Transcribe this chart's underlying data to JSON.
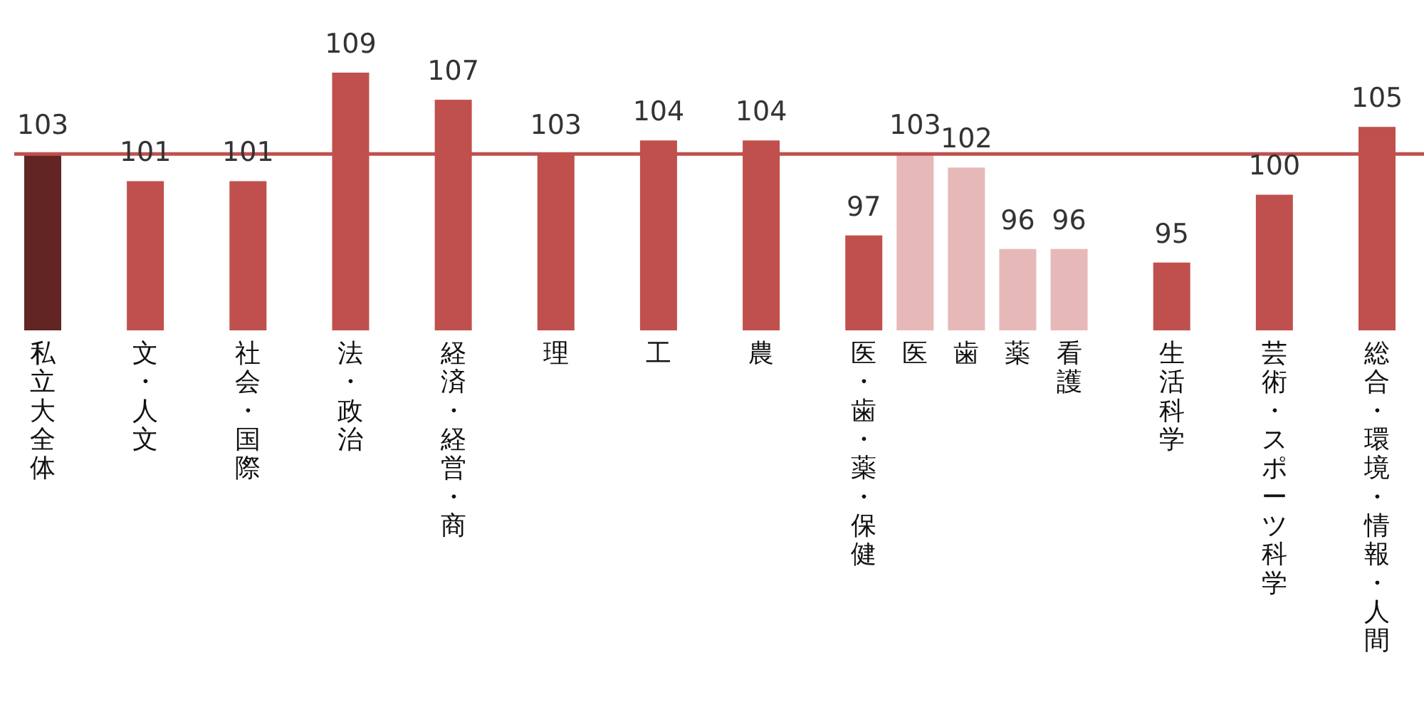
{
  "chart_data": {
    "type": "bar",
    "categories": [
      "私立大全体",
      null,
      "文・人文",
      null,
      "社会・国際",
      null,
      "法・政治",
      null,
      "経済・経営・商",
      null,
      "理",
      null,
      "工",
      null,
      "農",
      null,
      "医・歯・薬・保健",
      "医",
      "歯",
      "薬",
      "看護",
      null,
      "生活科学",
      null,
      "芸術・スポーツ科学",
      null,
      "総合・環境・情報・人間"
    ],
    "values": [
      103,
      null,
      101,
      null,
      101,
      null,
      109,
      null,
      107,
      null,
      103,
      null,
      104,
      null,
      104,
      null,
      97,
      103,
      102,
      96,
      96,
      null,
      95,
      null,
      100,
      null,
      105
    ],
    "colors": [
      "#632523",
      null,
      "#c0504d",
      null,
      "#c0504d",
      null,
      "#c0504d",
      null,
      "#c0504d",
      null,
      "#c0504d",
      null,
      "#c0504d",
      null,
      "#c0504d",
      null,
      "#c0504d",
      "#e6b9b8",
      "#e6b9b8",
      "#e6b9b8",
      "#e6b9b8",
      null,
      "#c0504d",
      null,
      "#c0504d",
      null,
      "#c0504d"
    ],
    "ylim": [
      90,
      109
    ],
    "tick_labels": "x",
    "data_labels": true,
    "ref_lines": [
      {
        "axis": "y",
        "value": 103,
        "color": "#c0504d"
      }
    ]
  }
}
